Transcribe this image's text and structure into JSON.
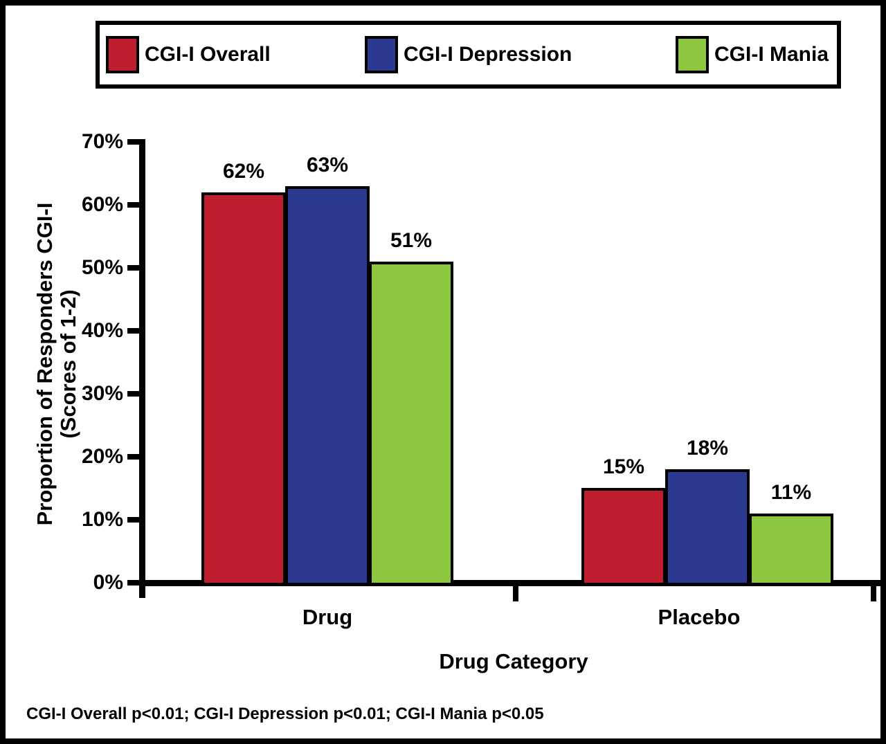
{
  "figure": {
    "background": "#ffffff",
    "frame_color": "#000000"
  },
  "legend": {
    "items": [
      {
        "label": "CGI-I Overall",
        "color": "#be1e2d"
      },
      {
        "label": "CGI-I Depression",
        "color": "#2b3990"
      },
      {
        "label": "CGI-I Mania",
        "color": "#8dc63f"
      }
    ]
  },
  "chart_data": {
    "type": "bar",
    "title": "",
    "categories": [
      "Drug",
      "Placebo"
    ],
    "series": [
      {
        "name": "CGI-I Overall",
        "color": "#be1e2d",
        "values": [
          62,
          15
        ]
      },
      {
        "name": "CGI-I Depression",
        "color": "#2b3990",
        "values": [
          63,
          18
        ]
      },
      {
        "name": "CGI-I Mania",
        "color": "#8dc63f",
        "values": [
          51,
          11
        ]
      }
    ],
    "value_labels": [
      [
        "62%",
        "63%",
        "51%"
      ],
      [
        "15%",
        "18%",
        "11%"
      ]
    ],
    "xlabel": "Drug Category",
    "ylabel_line1": "Proportion of Responders CGI-I",
    "ylabel_line2": "(Scores of 1-2)",
    "ylim": [
      0,
      70
    ],
    "ytick_step": 10,
    "ytick_labels": [
      "70%",
      "60%",
      "50%",
      "40%",
      "30%",
      "20%",
      "10%",
      "0%"
    ],
    "grid": false,
    "legend_position": "top",
    "bar_outline_color": "#000000"
  },
  "footnote": "CGI-I Overall p<0.01; CGI-I Depression p<0.01; CGI-I Mania p<0.05"
}
